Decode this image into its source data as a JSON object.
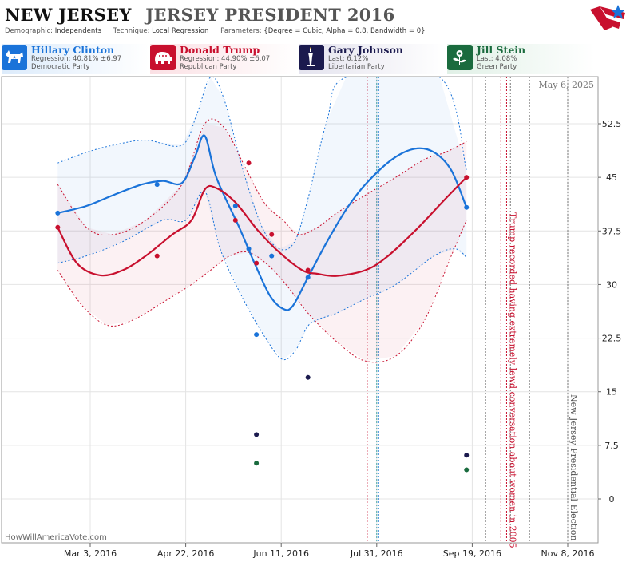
{
  "header": {
    "state": "NEW JERSEY",
    "race": "JERSEY PRESIDENT 2016",
    "demographic_label": "Demographic:",
    "demographic_value": "Independents",
    "technique_label": "Technique:",
    "technique_value": "Local Regression",
    "parameters_label": "Parameters:",
    "parameters_value": "{Degree = Cubic, Alpha = 0.8, Bandwidth = 0}"
  },
  "candidates": [
    {
      "name": "Hillary Clinton",
      "stat": "Regression: 40.81% ±6.97",
      "party": "Democratic Party",
      "color": "#1a73d9",
      "icon": "donkey-icon"
    },
    {
      "name": "Donald Trump",
      "stat": "Regression: 44.90% ±6.07",
      "party": "Republican Party",
      "color": "#c8102e",
      "icon": "elephant-icon"
    },
    {
      "name": "Gary Johnson",
      "stat": "Last: 6.12%",
      "party": "Libertarian Party",
      "color": "#1b1a4e",
      "icon": "liberty-torch-icon"
    },
    {
      "name": "Jill Stein",
      "stat": "Last: 4.08%",
      "party": "Green Party",
      "color": "#1a6b3e",
      "icon": "sunflower-icon"
    }
  ],
  "footer": "HowWillAmericaVote.com",
  "chart_data": {
    "type": "line",
    "date_label": "May 6, 2025",
    "x_ticks": [
      "Mar 3, 2016",
      "Apr 22, 2016",
      "Jun 11, 2016",
      "Jul 31, 2016",
      "Sep 19, 2016",
      "Nov 8, 2016"
    ],
    "y_ticks": [
      0,
      7.5,
      15,
      22.5,
      30,
      37.5,
      45,
      52.5
    ],
    "ylim": [
      -7,
      59
    ],
    "annotations": [
      {
        "text": "Trump recorded having extremely lewd conversation about women in 2005",
        "date": "2016-10-07",
        "color": "#c8102e"
      },
      {
        "text": "New Jersey Presidential Election",
        "date": "2016-11-08",
        "color": "#555555"
      }
    ],
    "series": [
      {
        "name": "Hillary Clinton",
        "color": "#1a73d9",
        "line": [
          [
            "2016-02-15",
            40
          ],
          [
            "2016-03-01",
            41
          ],
          [
            "2016-03-15",
            42.5
          ],
          [
            "2016-03-30",
            44
          ],
          [
            "2016-04-10",
            44.5
          ],
          [
            "2016-04-20",
            44.2
          ],
          [
            "2016-04-27",
            48
          ],
          [
            "2016-05-02",
            50.8
          ],
          [
            "2016-05-08",
            45
          ],
          [
            "2016-05-20",
            38
          ],
          [
            "2016-05-28",
            33
          ],
          [
            "2016-06-05",
            28.5
          ],
          [
            "2016-06-12",
            26.6
          ],
          [
            "2016-06-17",
            27
          ],
          [
            "2016-06-25",
            31
          ],
          [
            "2016-07-05",
            36
          ],
          [
            "2016-07-15",
            40.5
          ],
          [
            "2016-07-25",
            44
          ],
          [
            "2016-08-08",
            47.5
          ],
          [
            "2016-08-20",
            49
          ],
          [
            "2016-08-30",
            48.5
          ],
          [
            "2016-09-08",
            46
          ],
          [
            "2016-09-16",
            40.8
          ]
        ],
        "upper": [
          [
            "2016-02-15",
            47
          ],
          [
            "2016-03-01",
            48.5
          ],
          [
            "2016-03-15",
            49.5
          ],
          [
            "2016-04-01",
            50.2
          ],
          [
            "2016-04-20",
            49.5
          ],
          [
            "2016-04-28",
            54
          ],
          [
            "2016-05-05",
            59
          ],
          [
            "2016-05-12",
            56
          ],
          [
            "2016-05-22",
            46
          ],
          [
            "2016-06-01",
            38
          ],
          [
            "2016-06-10",
            35
          ],
          [
            "2016-06-18",
            36
          ],
          [
            "2016-06-25",
            42
          ],
          [
            "2016-07-05",
            53
          ],
          [
            "2016-07-15",
            59
          ],
          [
            "2016-09-02",
            59
          ],
          [
            "2016-09-16",
            46
          ]
        ],
        "lower": [
          [
            "2016-02-15",
            33
          ],
          [
            "2016-03-01",
            34
          ],
          [
            "2016-03-20",
            36
          ],
          [
            "2016-04-10",
            39
          ],
          [
            "2016-04-22",
            39
          ],
          [
            "2016-05-02",
            43
          ],
          [
            "2016-05-10",
            35
          ],
          [
            "2016-05-22",
            28
          ],
          [
            "2016-06-04",
            22
          ],
          [
            "2016-06-12",
            19.5
          ],
          [
            "2016-06-19",
            21
          ],
          [
            "2016-06-26",
            24.5
          ],
          [
            "2016-07-10",
            26
          ],
          [
            "2016-07-25",
            28
          ],
          [
            "2016-08-10",
            30
          ],
          [
            "2016-08-30",
            34
          ],
          [
            "2016-09-10",
            35
          ],
          [
            "2016-09-16",
            33.8
          ]
        ],
        "points": [
          [
            "2016-02-15",
            40
          ],
          [
            "2016-04-07",
            44
          ],
          [
            "2016-05-18",
            41
          ],
          [
            "2016-05-25",
            35
          ],
          [
            "2016-05-29",
            23
          ],
          [
            "2016-06-06",
            34
          ],
          [
            "2016-06-25",
            31
          ],
          [
            "2016-09-16",
            40.8
          ]
        ]
      },
      {
        "name": "Donald Trump",
        "color": "#c8102e",
        "line": [
          [
            "2016-02-15",
            38
          ],
          [
            "2016-02-25",
            33
          ],
          [
            "2016-03-08",
            31.3
          ],
          [
            "2016-03-20",
            32
          ],
          [
            "2016-04-01",
            34
          ],
          [
            "2016-04-15",
            37
          ],
          [
            "2016-04-25",
            39
          ],
          [
            "2016-05-02",
            43.3
          ],
          [
            "2016-05-08",
            43.5
          ],
          [
            "2016-05-18",
            41.5
          ],
          [
            "2016-05-30",
            37.5
          ],
          [
            "2016-06-10",
            34.5
          ],
          [
            "2016-06-22",
            32
          ],
          [
            "2016-06-30",
            31.5
          ],
          [
            "2016-07-10",
            31.2
          ],
          [
            "2016-07-25",
            32
          ],
          [
            "2016-08-05",
            33.8
          ],
          [
            "2016-08-20",
            37.5
          ],
          [
            "2016-09-05",
            42
          ],
          [
            "2016-09-16",
            45
          ]
        ],
        "upper": [
          [
            "2016-02-15",
            44
          ],
          [
            "2016-03-01",
            38
          ],
          [
            "2016-03-15",
            37
          ],
          [
            "2016-04-01",
            39
          ],
          [
            "2016-04-20",
            44
          ],
          [
            "2016-05-02",
            52.5
          ],
          [
            "2016-05-12",
            52
          ],
          [
            "2016-05-22",
            47
          ],
          [
            "2016-06-02",
            41.5
          ],
          [
            "2016-06-12",
            39
          ],
          [
            "2016-06-20",
            37
          ],
          [
            "2016-06-30",
            38
          ],
          [
            "2016-07-10",
            40
          ],
          [
            "2016-07-25",
            42.5
          ],
          [
            "2016-08-10",
            45
          ],
          [
            "2016-08-25",
            47.5
          ],
          [
            "2016-09-05",
            48.5
          ],
          [
            "2016-09-16",
            50
          ]
        ],
        "lower": [
          [
            "2016-02-15",
            32
          ],
          [
            "2016-02-28",
            27
          ],
          [
            "2016-03-12",
            24.3
          ],
          [
            "2016-03-25",
            25
          ],
          [
            "2016-04-10",
            27.5
          ],
          [
            "2016-04-25",
            30
          ],
          [
            "2016-05-05",
            32
          ],
          [
            "2016-05-15",
            34
          ],
          [
            "2016-05-25",
            34.5
          ],
          [
            "2016-06-05",
            32.5
          ],
          [
            "2016-06-15",
            29.5
          ],
          [
            "2016-06-25",
            26
          ],
          [
            "2016-07-10",
            22
          ],
          [
            "2016-07-25",
            19.3
          ],
          [
            "2016-08-10",
            20
          ],
          [
            "2016-08-25",
            25
          ],
          [
            "2016-09-08",
            34
          ],
          [
            "2016-09-16",
            39
          ]
        ],
        "points": [
          [
            "2016-02-15",
            38
          ],
          [
            "2016-04-07",
            34
          ],
          [
            "2016-05-18",
            39
          ],
          [
            "2016-05-25",
            47
          ],
          [
            "2016-05-29",
            33
          ],
          [
            "2016-06-06",
            37
          ],
          [
            "2016-06-25",
            32
          ],
          [
            "2016-09-16",
            45
          ]
        ]
      },
      {
        "name": "Gary Johnson",
        "color": "#1b1a4e",
        "points": [
          [
            "2016-05-29",
            9
          ],
          [
            "2016-06-25",
            17
          ],
          [
            "2016-09-16",
            6.12
          ]
        ]
      },
      {
        "name": "Jill Stein",
        "color": "#1a6b3e",
        "points": [
          [
            "2016-05-29",
            5
          ],
          [
            "2016-09-16",
            4.08
          ]
        ]
      }
    ],
    "events": [
      {
        "date": "2016-07-26",
        "color": "#c8102e"
      },
      {
        "date": "2016-07-31",
        "color": "#3aa0a0"
      },
      {
        "date": "2016-08-01",
        "color": "#1a73d9"
      },
      {
        "date": "2016-09-26",
        "color": "#777777"
      },
      {
        "date": "2016-10-04",
        "color": "#c8102e"
      },
      {
        "date": "2016-10-07",
        "color": "#c8102e"
      },
      {
        "date": "2016-10-09",
        "color": "#777777"
      },
      {
        "date": "2016-10-19",
        "color": "#777777"
      },
      {
        "date": "2016-11-08",
        "color": "#777777"
      }
    ]
  }
}
